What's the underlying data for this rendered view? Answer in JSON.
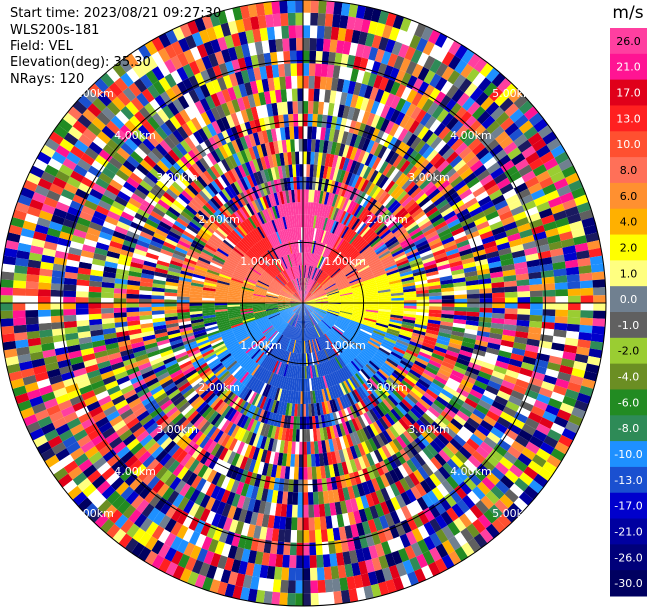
{
  "info": {
    "start_time": "Start time: 2023/08/21 09:27:30",
    "instrument": "WLS200s-181",
    "field": "Field: VEL",
    "elevation": "Elevation(deg): 35.30",
    "nrays": "NRays: 120"
  },
  "range_rings": {
    "labels": [
      "1.00km",
      "2.00km",
      "3.00km",
      "4.00km",
      "5.00km"
    ],
    "values_km": [
      1,
      2,
      3,
      4,
      5
    ],
    "max_km": 5.0
  },
  "colorbar": {
    "unit": "m/s",
    "ticks": [
      "26.0",
      "21.0",
      "17.0",
      "13.0",
      "10.0",
      "8.0",
      "6.0",
      "4.0",
      "2.0",
      "1.0",
      "0.0",
      "-1.0",
      "-2.0",
      "-4.0",
      "-6.0",
      "-8.0",
      "-10.0",
      "-13.0",
      "-17.0",
      "-21.0",
      "-26.0",
      "-30.0"
    ],
    "colors": [
      "#ff3fa0",
      "#ff1493",
      "#e0001a",
      "#ff2020",
      "#ff5030",
      "#ff7058",
      "#ff9030",
      "#ffb000",
      "#ffff00",
      "#ffff80",
      "#708090",
      "#606060",
      "#9acd32",
      "#6b8e23",
      "#228b22",
      "#2e8b57",
      "#1e90ff",
      "#1a50d0",
      "#0000cd",
      "#0000a0",
      "#00007a",
      "#000060",
      "#1a1a60"
    ]
  },
  "chart_data": {
    "type": "heatmap",
    "field": "VEL",
    "units": "m/s",
    "nrays": 120,
    "elevation_deg": 35.3,
    "max_range_km": 5.0
  }
}
